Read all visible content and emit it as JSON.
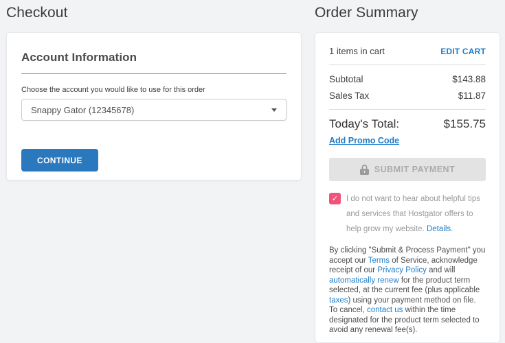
{
  "left": {
    "title": "Checkout",
    "card": {
      "heading": "Account Information",
      "account_label": "Choose the account you would like to use for this order",
      "account_select_value": "Snappy Gator (12345678)",
      "continue_label": "CONTINUE"
    }
  },
  "right": {
    "title": "Order Summary",
    "cart_count_text": "1 items in cart",
    "edit_cart_label": "EDIT CART",
    "rows": [
      {
        "label": "Subtotal",
        "value": "$143.88"
      },
      {
        "label": "Sales Tax",
        "value": "$11.87"
      }
    ],
    "total_label": "Today's Total:",
    "total_value": "$155.75",
    "promo_link": "Add Promo Code",
    "submit_label": "SUBMIT PAYMENT",
    "optout": {
      "checked": true,
      "segments": [
        {
          "text": "I do not want to hear about helpful tips and services that Hostgator offers to help grow my website. ",
          "link": false
        },
        {
          "text": "Details",
          "link": true
        },
        {
          "text": ".",
          "link": false
        }
      ]
    },
    "legal": {
      "segments": [
        {
          "text": "By clicking \"Submit & Process Payment\" you accept our ",
          "link": false
        },
        {
          "text": "Terms",
          "link": true
        },
        {
          "text": " of Service, acknowledge receipt of our ",
          "link": false
        },
        {
          "text": "Privacy Policy",
          "link": true
        },
        {
          "text": " and will ",
          "link": false
        },
        {
          "text": "automatically renew",
          "link": true
        },
        {
          "text": " for the product term selected, at the current fee (plus applicable ",
          "link": false
        },
        {
          "text": "taxes",
          "link": true
        },
        {
          "text": ") using your payment method on file. To cancel, ",
          "link": false
        },
        {
          "text": "contact us",
          "link": true
        },
        {
          "text": " within the time designated for the product term selected to avoid any renewal fee(s).",
          "link": false
        }
      ]
    }
  },
  "icons": {
    "check_glyph": "✓"
  },
  "colors": {
    "page_bg": "#f2f3f5",
    "card_bg": "#ffffff",
    "heading_text": "#3a3a3a",
    "link_blue": "#1e7cc7",
    "button_blue": "#2a79be",
    "checkbox_pink": "#f2537d",
    "disabled_bg": "#e3e3e3",
    "disabled_text": "#ababab"
  }
}
